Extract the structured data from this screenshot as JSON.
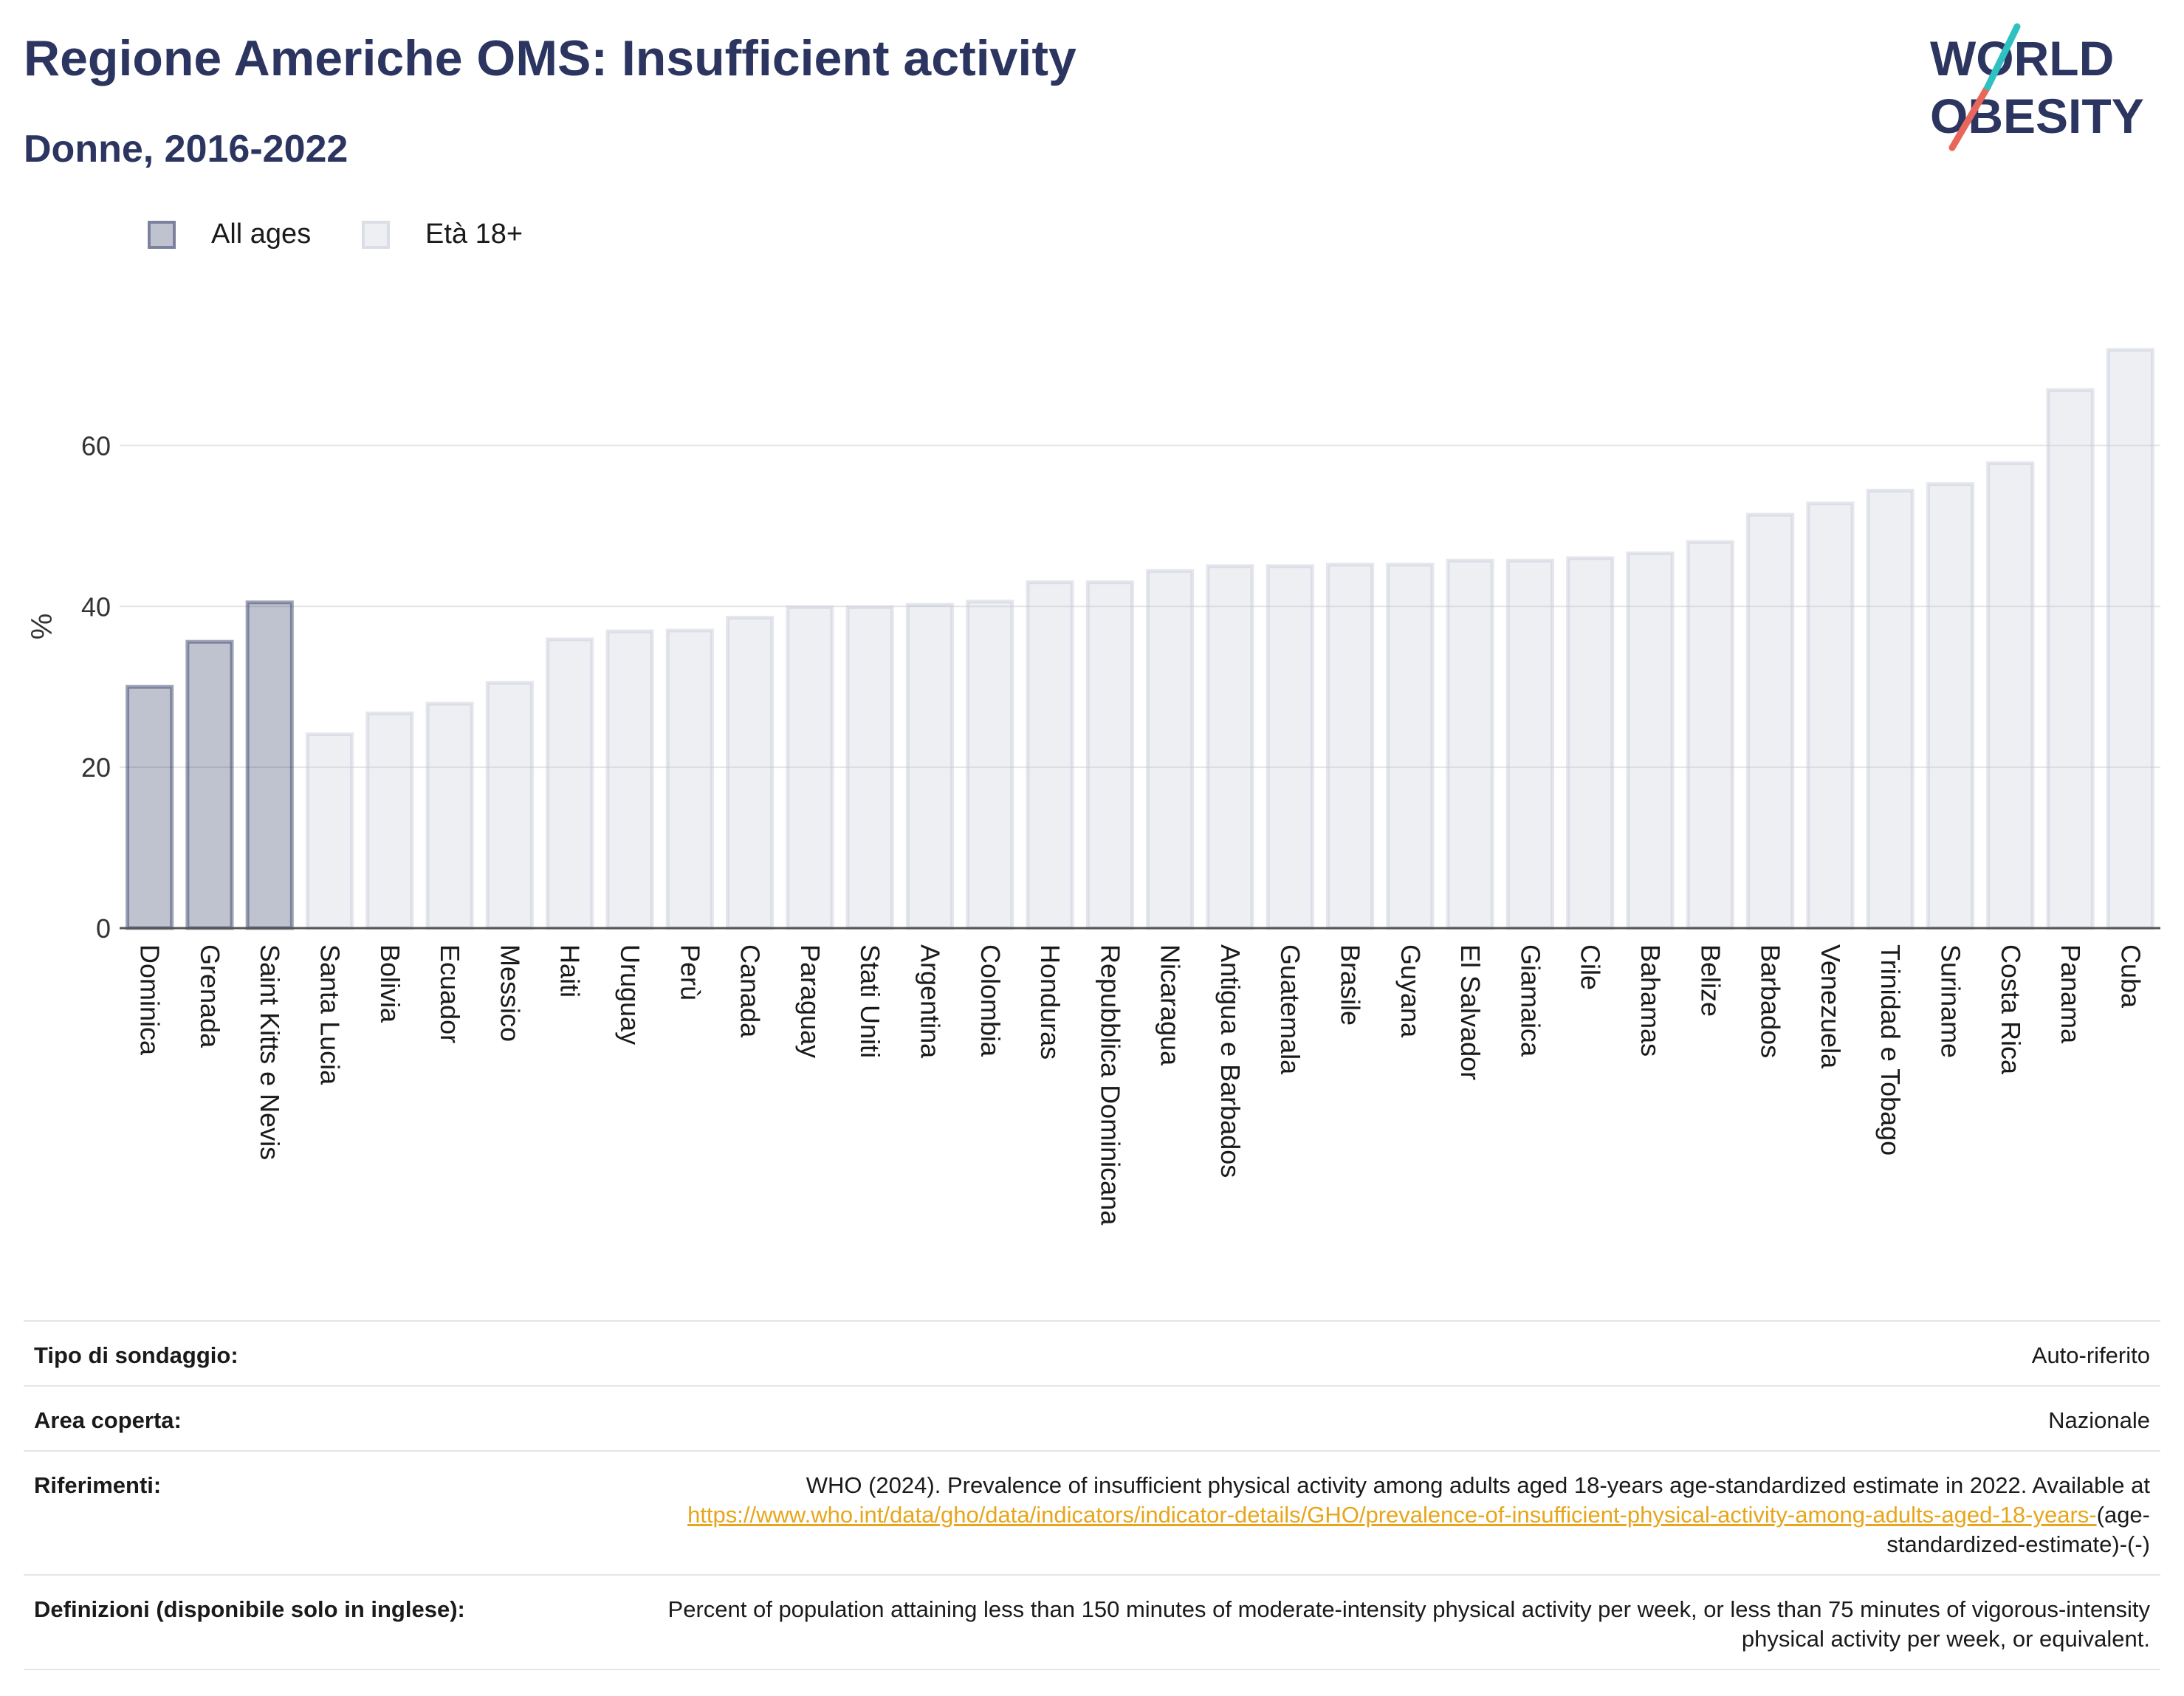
{
  "header": {
    "title": "Regione Americhe OMS: Insufficient activity",
    "subtitle": "Donne, 2016-2022",
    "logo": {
      "line1": "WORLD",
      "line2": "OBESITY"
    }
  },
  "legend": [
    {
      "label": "All ages",
      "color": "#2b3560"
    },
    {
      "label": "Età 18+",
      "color": "#c5c9d8"
    }
  ],
  "chart_data": {
    "type": "bar",
    "ylabel": "%",
    "xlabel": "",
    "ylim": [
      0,
      75
    ],
    "yticks": [
      0,
      20,
      40,
      60
    ],
    "grid": true,
    "legend_position": "top-left",
    "categories": [
      "Dominica",
      "Grenada",
      "Saint Kitts e Nevis",
      "Santa Lucia",
      "Bolivia",
      "Ecuador",
      "Messico",
      "Haiti",
      "Uruguay",
      "Perù",
      "Canada",
      "Paraguay",
      "Stati Uniti",
      "Argentina",
      "Colombia",
      "Honduras",
      "Repubblica Dominicana",
      "Nicaragua",
      "Antigua e Barbados",
      "Guatemala",
      "Brasile",
      "Guyana",
      "El Salvador",
      "Giamaica",
      "Cile",
      "Bahamas",
      "Belize",
      "Barbados",
      "Venezuela",
      "Trinidad e Tobago",
      "Suriname",
      "Costa Rica",
      "Panama",
      "Cuba"
    ],
    "series": [
      {
        "name": "All ages",
        "values": [
          30.0,
          35.6,
          40.5,
          null,
          null,
          null,
          null,
          null,
          null,
          null,
          null,
          null,
          null,
          null,
          null,
          null,
          null,
          null,
          null,
          null,
          null,
          null,
          null,
          null,
          null,
          null,
          null,
          null,
          null,
          null,
          null,
          null,
          null,
          null
        ]
      },
      {
        "name": "Età 18+",
        "values": [
          null,
          null,
          null,
          24.1,
          26.7,
          27.9,
          30.5,
          35.9,
          36.9,
          37.0,
          38.6,
          39.9,
          39.9,
          40.2,
          40.6,
          43.0,
          43.0,
          44.4,
          45.0,
          45.0,
          45.2,
          45.2,
          45.7,
          45.7,
          46.0,
          46.6,
          48.0,
          51.4,
          52.8,
          54.4,
          55.2,
          57.8,
          66.9,
          71.9
        ]
      }
    ]
  },
  "info": [
    {
      "label": "Tipo di sondaggio:",
      "value": "Auto-riferito"
    },
    {
      "label": "Area coperta:",
      "value": "Nazionale"
    },
    {
      "label": "Riferimenti:",
      "value": "WHO (2024). Prevalence of insufficient physical activity among adults aged 18-years age-standardized estimate in 2022. Available at",
      "link": "https://www.who.int/data/gho/data/indicators/indicator-details/GHO/prevalence-of-insufficient-physical-activity-among-adults-aged-18-years-",
      "suffix": "(age-standardized-estimate)-(-)"
    },
    {
      "label": "Definizioni (disponibile solo in inglese):",
      "value": "Percent of population attaining less than 150 minutes of moderate-intensity physical activity per week, or less than 75 minutes of vigorous-intensity physical activity per week, or equivalent."
    }
  ]
}
